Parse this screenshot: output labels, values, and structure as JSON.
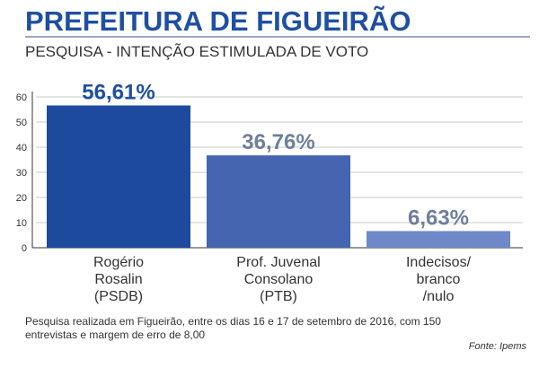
{
  "header": {
    "title": "PREFEITURA DE FIGUEIRÃO",
    "subtitle": "PESQUISA - INTENÇÃO ESTIMULADA DE VOTO"
  },
  "chart_data": {
    "type": "bar",
    "categories": [
      [
        "Rogério",
        "Rosalin",
        "(PSDB)"
      ],
      [
        "Prof. Juvenal",
        "Consolano",
        "(PTB)"
      ],
      [
        "Indecisos/",
        "branco",
        "/nulo"
      ]
    ],
    "values": [
      56.61,
      36.76,
      6.63
    ],
    "value_labels": [
      "56,61%",
      "36,76%",
      "6,63%"
    ],
    "bar_colors": [
      "#1e4a9e",
      "#4565b0",
      "#6e88c8"
    ],
    "label_colors": [
      "#1f4fa3",
      "#6d7f9c",
      "#6d7f9c"
    ],
    "yticks": [
      0,
      10,
      20,
      30,
      40,
      50,
      60
    ],
    "ylim": [
      0,
      60
    ],
    "grid": true
  },
  "footer": {
    "note": "Pesquisa realizada em Figueirão, entre os dias 16 e 17 de setembro de 2016, com 150 entrevistas e margem de erro de 8,00",
    "source": "Fonte: Ipems"
  }
}
